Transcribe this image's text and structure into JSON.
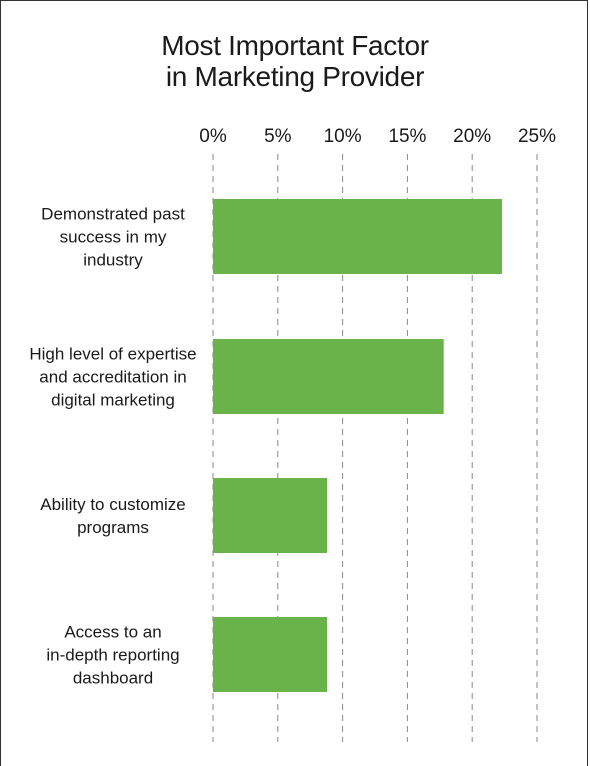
{
  "chart_data": {
    "type": "bar",
    "orientation": "horizontal",
    "title_lines": [
      "Most Important Factor",
      "in Marketing Provider"
    ],
    "categories": [
      [
        "Demonstrated past",
        "success in my",
        "industry"
      ],
      [
        "High level of expertise",
        "and accreditation in",
        "digital marketing"
      ],
      [
        "Ability to customize",
        "programs"
      ],
      [
        "Access to an",
        "in-depth reporting",
        "dashboard"
      ]
    ],
    "values": [
      22.3,
      17.8,
      8.8,
      8.8
    ],
    "xlim": [
      0,
      25
    ],
    "ticks": [
      "0%",
      "5%",
      "10%",
      "15%",
      "20%",
      "25%"
    ],
    "tick_values": [
      0,
      5,
      10,
      15,
      20,
      25
    ],
    "axis_position": "top",
    "grid": true,
    "bar_color": "#6ab34a",
    "grid_color": "#888888"
  }
}
